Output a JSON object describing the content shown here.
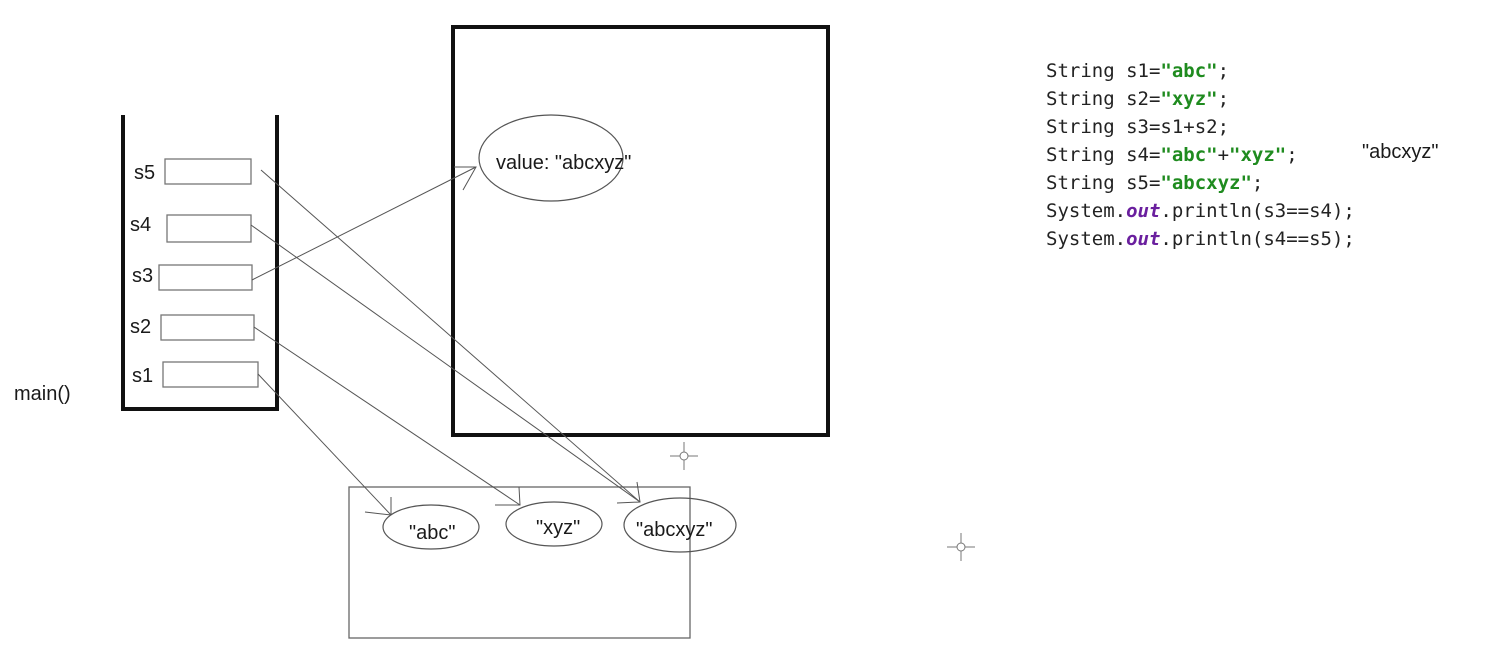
{
  "frame_label": "main()",
  "stack_vars": [
    "s5",
    "s4",
    "s3",
    "s2",
    "s1"
  ],
  "heap_object_text": "value: \"abcxyz\"",
  "pool_strings": [
    "\"abc\"",
    "\"xyz\"",
    "\"abcxyz\""
  ],
  "code_lines": [
    [
      {
        "t": "String s1=",
        "c": "plain"
      },
      {
        "t": "\"abc\"",
        "c": "str"
      },
      {
        "t": ";",
        "c": "plain"
      }
    ],
    [
      {
        "t": "String s2=",
        "c": "plain"
      },
      {
        "t": "\"xyz\"",
        "c": "str"
      },
      {
        "t": ";",
        "c": "plain"
      }
    ],
    [
      {
        "t": "String s3=s1+s2;",
        "c": "plain"
      }
    ],
    [
      {
        "t": "String s4=",
        "c": "plain"
      },
      {
        "t": "\"abc\"",
        "c": "str"
      },
      {
        "t": "+",
        "c": "plain"
      },
      {
        "t": "\"xyz\"",
        "c": "str"
      },
      {
        "t": ";",
        "c": "plain"
      }
    ],
    [
      {
        "t": "String s5=",
        "c": "plain"
      },
      {
        "t": "\"abcxyz\"",
        "c": "str"
      },
      {
        "t": ";",
        "c": "plain"
      }
    ],
    [
      {
        "t": "System.",
        "c": "plain"
      },
      {
        "t": "out",
        "c": "out"
      },
      {
        "t": ".println(s3==s4);",
        "c": "plain"
      }
    ],
    [
      {
        "t": "System.",
        "c": "plain"
      },
      {
        "t": "out",
        "c": "out"
      },
      {
        "t": ".println(s4==s5);",
        "c": "plain"
      }
    ]
  ],
  "side_note": "\"abcxyz\"",
  "colors": {
    "string_literal": "#1f8b1f",
    "out_keyword": "#6a1f9e"
  }
}
